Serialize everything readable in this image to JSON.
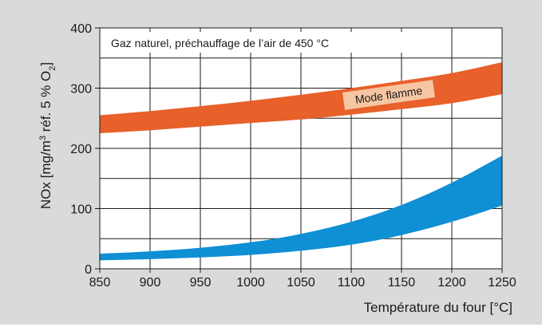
{
  "chart_data": {
    "type": "area",
    "xlabel": "Température du four [°C]",
    "ylabel": {
      "prefix": "NOx [mg/m",
      "sup": "3",
      "middle": " réf. 5 % O",
      "sub": "2",
      "suffix": "]"
    },
    "xlim": [
      850,
      1250
    ],
    "ylim": [
      0,
      400
    ],
    "x_ticks": [
      "850",
      "900",
      "950",
      "1000",
      "1050",
      "1100",
      "1150",
      "1200",
      "1250"
    ],
    "y_ticks": [
      "0",
      "100",
      "200",
      "300",
      "400"
    ],
    "grid": true,
    "annotation": "Gaz naturel, préchauffage de l’air de 450 °C",
    "colors": {
      "band_orange": "#e8602a",
      "band_blue": "#0f8fd4",
      "label_bg": "#f6c6a3",
      "figure_bg": "#d9dadb",
      "plot_bg": "#ffffff"
    },
    "series": [
      {
        "name": "Mode flamme",
        "x": [
          850,
          900,
          950,
          1000,
          1050,
          1100,
          1150,
          1200,
          1250
        ],
        "y_low": [
          225,
          230,
          236,
          242,
          248,
          256,
          265,
          275,
          290
        ],
        "y_high": [
          255,
          262,
          270,
          279,
          289,
          300,
          312,
          325,
          343
        ]
      },
      {
        "name": "",
        "x": [
          850,
          900,
          950,
          1000,
          1050,
          1100,
          1150,
          1200,
          1250
        ],
        "y_low": [
          14,
          16,
          19,
          23,
          30,
          40,
          56,
          78,
          105
        ],
        "y_high": [
          25,
          29,
          35,
          44,
          58,
          78,
          106,
          143,
          188
        ]
      }
    ]
  }
}
